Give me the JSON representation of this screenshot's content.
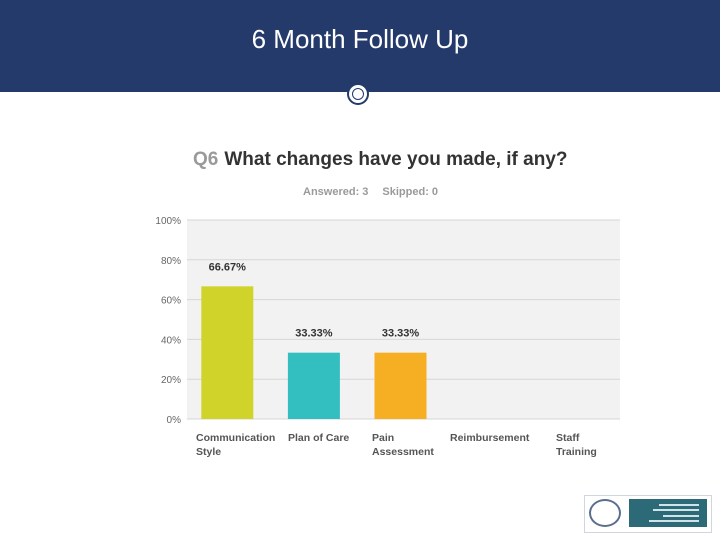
{
  "slide": {
    "title": "6 Month Follow Up"
  },
  "survey": {
    "question_number": "Q6",
    "question_text": "What changes have you made, if any?",
    "answered_label": "Answered: 3",
    "skipped_label": "Skipped: 0"
  },
  "colors": {
    "header_bg": "#233a6b",
    "plot_bg": "#f2f2f2",
    "bar_colors": [
      "#d0d42a",
      "#33bec0",
      "#f6ae23",
      "#f6ae23",
      "#f6ae23"
    ]
  },
  "chart_data": {
    "type": "bar",
    "categories": [
      [
        "Communication",
        "Style"
      ],
      [
        "Plan of Care"
      ],
      [
        "Pain",
        "Assessment"
      ],
      [
        "Reimbursement"
      ],
      [
        "Staff",
        "Training"
      ]
    ],
    "values": [
      66.67,
      33.33,
      33.33,
      0,
      0
    ],
    "data_labels": [
      "66.67%",
      "33.33%",
      "33.33%",
      "",
      ""
    ],
    "y_ticks": [
      "0%",
      "20%",
      "40%",
      "60%",
      "80%",
      "100%"
    ],
    "ylim": [
      0,
      100
    ],
    "grid": true
  },
  "logo": {
    "name": "agency-seal-logo"
  }
}
